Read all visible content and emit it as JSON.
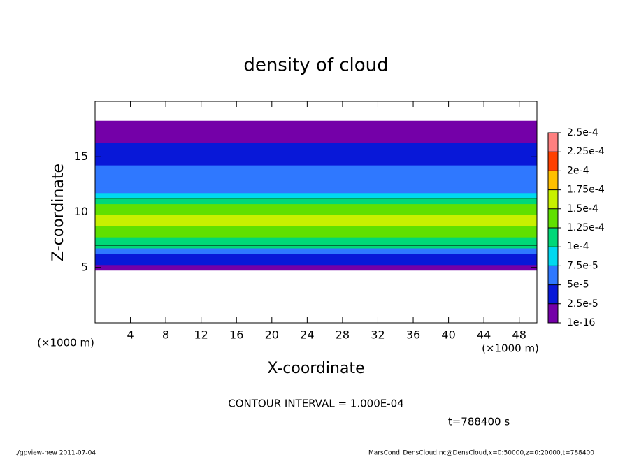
{
  "chart_data": {
    "type": "contour",
    "title": "density of cloud",
    "x_label": "X-coordinate",
    "y_label": "Z-coordinate",
    "x_unit": "(×1000 m)",
    "y_unit": "(×1000 m)",
    "xlim": [
      0,
      50
    ],
    "ylim": [
      0,
      20
    ],
    "xticks": [
      4,
      8,
      12,
      16,
      20,
      24,
      28,
      32,
      36,
      40,
      44,
      48
    ],
    "yticks": [
      5,
      10,
      15
    ],
    "z": [
      5,
      5.5,
      6,
      6.5,
      7,
      7.5,
      8,
      8.5,
      9,
      9.5,
      10,
      10.5,
      11,
      11.5,
      12,
      12.5,
      13,
      13.5,
      14,
      14.5,
      15,
      15.5,
      16,
      16.5,
      17,
      17.5,
      18
    ],
    "values": [
      1e-05,
      3e-05,
      4.5e-05,
      7e-05,
      0.0001,
      0.00012,
      0.000135,
      0.000145,
      0.00015,
      0.00015,
      0.000145,
      0.00013,
      0.00011,
      9e-05,
      7e-05,
      6e-05,
      5.5e-05,
      5e-05,
      5e-05,
      4.5e-05,
      4.5e-05,
      4e-05,
      3.5e-05,
      2e-05,
      1e-05,
      5e-06,
      2e-06
    ],
    "contour_interval": 0.0001,
    "levels": [
      {
        "value": 1e-16,
        "label": "1e-16"
      },
      {
        "value": 2.5e-05,
        "label": "2.5e-5"
      },
      {
        "value": 5e-05,
        "label": "5e-5"
      },
      {
        "value": 7.5e-05,
        "label": "7.5e-5"
      },
      {
        "value": 0.0001,
        "label": "1e-4"
      },
      {
        "value": 0.000125,
        "label": "1.25e-4"
      },
      {
        "value": 0.00015,
        "label": "1.5e-4"
      },
      {
        "value": 0.000175,
        "label": "1.75e-4"
      },
      {
        "value": 0.0002,
        "label": "2e-4"
      },
      {
        "value": 0.000225,
        "label": "2.25e-4"
      },
      {
        "value": 0.00025,
        "label": "2.5e-4"
      }
    ],
    "colors": [
      "#7400a8",
      "#0818d8",
      "#2f78ff",
      "#00d8f0",
      "#00d878",
      "#60e000",
      "#c8f000",
      "#ffc000",
      "#ff4000",
      "#ff8080"
    ],
    "annotations": [
      "CONTOUR INTERVAL = 1.000E-04",
      "t=788400 s"
    ],
    "footer_left": "./gpview-new   2011-07-04",
    "footer_right": "MarsCond_DensCloud.nc@DensCloud,x=0:50000,z=0:20000,t=788400"
  }
}
